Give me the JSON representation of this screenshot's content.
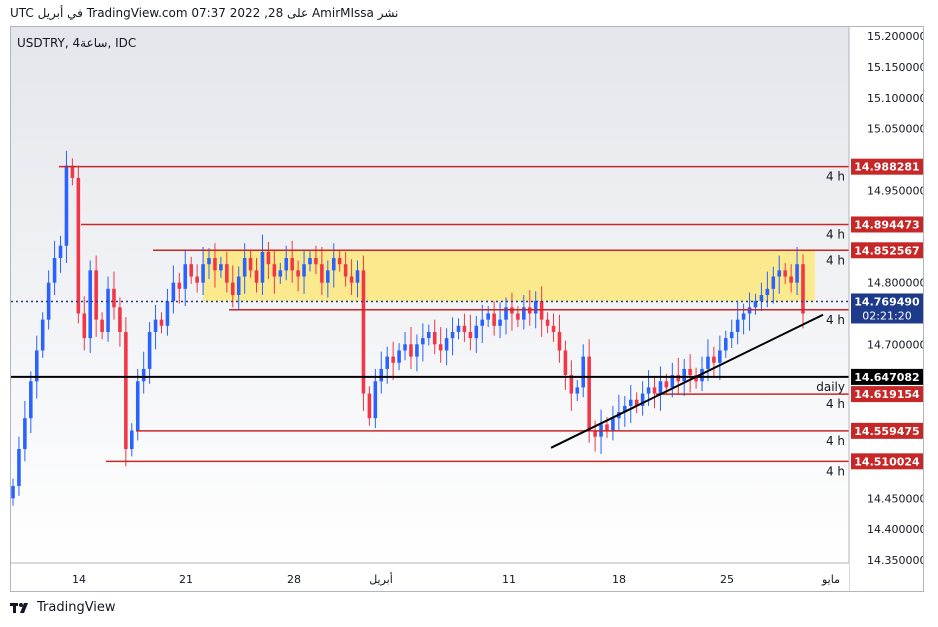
{
  "header_text": "نشر AmirMIssa على TradingView.com 07:37 2022 ,28 في أبريل UTC",
  "brand": "TradingView",
  "chart_data": {
    "type": "candlestick",
    "symbol_label": "USDTRY, 4ساعة, IDC",
    "ylim": [
      14.345,
      15.215
    ],
    "y_ticks": [
      "15.200000",
      "15.150000",
      "15.100000",
      "15.050000",
      "14.950000",
      "14.800000",
      "14.700000",
      "14.450000",
      "14.400000",
      "14.350000"
    ],
    "x_ticks": [
      "14",
      "21",
      "28",
      "أبريل",
      "11",
      "18",
      "25",
      "مايو"
    ],
    "price_labels": [
      {
        "value": 14.988281,
        "text": "14.988281",
        "color": "#c62828"
      },
      {
        "value": 14.894473,
        "text": "14.894473",
        "color": "#c62828"
      },
      {
        "value": 14.852567,
        "text": "14.852567",
        "color": "#c62828"
      },
      {
        "value": 14.76949,
        "text": "14.769490",
        "color": "#1e3a8a",
        "sub": "02:21:20"
      },
      {
        "value": 14.647082,
        "text": "14.647082",
        "color": "#000000"
      },
      {
        "value": 14.619154,
        "text": "14.619154",
        "color": "#c62828"
      },
      {
        "value": 14.559475,
        "text": "14.559475",
        "color": "#c62828"
      },
      {
        "value": 14.510024,
        "text": "14.510024",
        "color": "#c62828"
      }
    ],
    "levels": [
      {
        "value": 14.988281,
        "label": "4 h",
        "color": "#c62828"
      },
      {
        "value": 14.894473,
        "label": "4 h",
        "color": "#c62828"
      },
      {
        "value": 14.852567,
        "label": "4 h",
        "color": "#c62828"
      },
      {
        "value": 14.756,
        "label": "4 h",
        "color": "#c62828"
      },
      {
        "value": 14.647082,
        "label": "daily",
        "color": "#000000"
      },
      {
        "value": 14.619154,
        "label": "4 h",
        "color": "#c62828"
      },
      {
        "value": 14.559475,
        "label": "4 h",
        "color": "#c62828"
      },
      {
        "value": 14.510024,
        "label": "4 h",
        "color": "#c62828"
      }
    ],
    "current_price": 14.76949,
    "zone": {
      "top": 14.852567,
      "bottom": 14.77,
      "color": "#fde87a"
    },
    "trendline": {
      "from": 14.532,
      "to": 14.748
    },
    "candle_colors": {
      "up": "#2962ff",
      "down": "#f23645"
    },
    "closes": [
      14.47,
      14.53,
      14.58,
      14.64,
      14.69,
      14.74,
      14.8,
      14.84,
      14.86,
      14.99,
      14.97,
      14.75,
      14.71,
      14.82,
      14.74,
      14.72,
      14.79,
      14.76,
      14.72,
      14.53,
      14.56,
      14.64,
      14.66,
      14.72,
      14.74,
      14.73,
      14.77,
      14.8,
      14.79,
      14.83,
      14.81,
      14.8,
      14.83,
      14.84,
      14.82,
      14.83,
      14.8,
      14.78,
      14.81,
      14.84,
      14.82,
      14.8,
      14.85,
      14.83,
      14.81,
      14.82,
      14.84,
      14.82,
      14.81,
      14.83,
      14.84,
      14.83,
      14.8,
      14.82,
      14.84,
      14.83,
      14.81,
      14.8,
      14.82,
      14.62,
      14.58,
      14.64,
      14.66,
      14.68,
      14.67,
      14.69,
      14.7,
      14.68,
      14.7,
      14.71,
      14.72,
      14.7,
      14.69,
      14.71,
      14.72,
      14.73,
      14.72,
      14.71,
      14.73,
      14.74,
      14.75,
      14.73,
      14.74,
      14.76,
      14.75,
      14.74,
      14.76,
      14.75,
      14.77,
      14.74,
      14.73,
      14.72,
      14.69,
      14.65,
      14.62,
      14.63,
      14.68,
      14.56,
      14.55,
      14.57,
      14.56,
      14.58,
      14.59,
      14.6,
      14.61,
      14.6,
      14.62,
      14.63,
      14.62,
      14.64,
      14.63,
      14.65,
      14.64,
      14.66,
      14.65,
      14.64,
      14.66,
      14.68,
      14.67,
      14.69,
      14.71,
      14.72,
      14.74,
      14.75,
      14.76,
      14.77,
      14.78,
      14.79,
      14.81,
      14.82,
      14.81,
      14.8,
      14.83,
      14.75
    ]
  }
}
